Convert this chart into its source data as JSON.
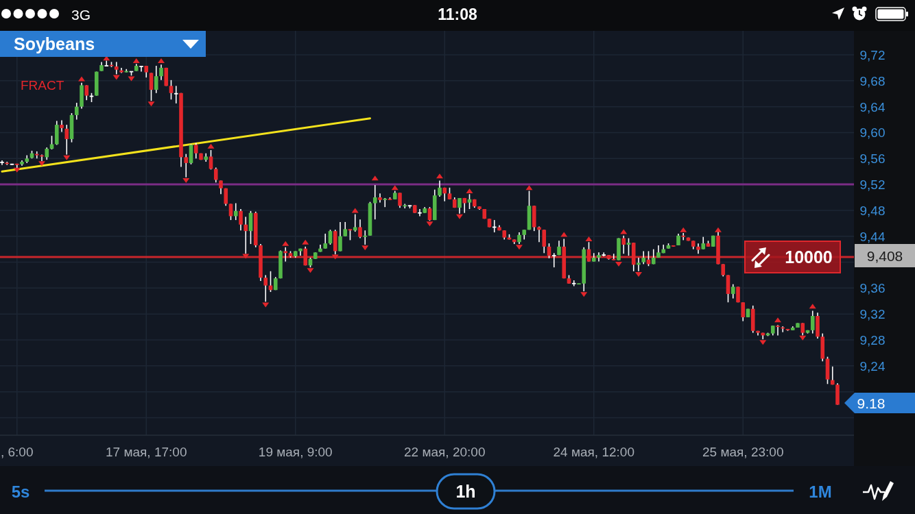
{
  "chart_data": {
    "type": "candlestick",
    "title": "Soybeans",
    "categories": [
      null,
      null,
      null,
      ", 6:00",
      null,
      null,
      null,
      null,
      null,
      null,
      null,
      null,
      null,
      null,
      null,
      null,
      null,
      null,
      null,
      null,
      null,
      null,
      null,
      null,
      null,
      null,
      null,
      null,
      null,
      "17 мая, 17:00",
      null,
      null,
      null,
      null,
      null,
      null,
      null,
      null,
      null,
      null,
      null,
      null,
      null,
      null,
      null,
      null,
      null,
      null,
      null,
      null,
      null,
      null,
      null,
      null,
      null,
      null,
      null,
      null,
      null,
      "19 мая, 9:00",
      null,
      null,
      null,
      null,
      null,
      null,
      null,
      null,
      null,
      null,
      null,
      null,
      null,
      null,
      null,
      null,
      null,
      null,
      null,
      null,
      null,
      null,
      null,
      null,
      null,
      null,
      null,
      null,
      null,
      "22 мая, 20:00",
      null,
      null,
      null,
      null,
      null,
      null,
      null,
      null,
      null,
      null,
      null,
      null,
      null,
      null,
      null,
      null,
      null,
      null,
      null,
      null,
      null,
      null,
      null,
      null,
      null,
      null,
      null,
      null,
      null,
      "24 мая, 12:00",
      null,
      null,
      null,
      null,
      null,
      null,
      null,
      null,
      null,
      null,
      null,
      null,
      null,
      null,
      null,
      null,
      null,
      null,
      null,
      null,
      null,
      null,
      null,
      null,
      null,
      null,
      null,
      null,
      null,
      "25 мая, 23:00",
      null,
      null,
      null,
      null,
      null,
      null,
      null,
      null,
      null,
      null,
      null,
      null,
      null,
      null,
      null,
      null,
      null,
      null,
      null
    ],
    "ohlc": [
      [
        9.554,
        9.557,
        9.55,
        9.554
      ],
      [
        9.553,
        9.555,
        9.55,
        9.552
      ],
      [
        9.551,
        9.552,
        9.55,
        9.551
      ],
      [
        9.552,
        9.552,
        9.545,
        9.55
      ],
      [
        9.551,
        9.557,
        9.549,
        9.555
      ],
      [
        9.555,
        9.565,
        9.553,
        9.56
      ],
      [
        9.561,
        9.572,
        9.56,
        9.568
      ],
      [
        9.567,
        9.571,
        9.56,
        9.565
      ],
      [
        9.565,
        9.566,
        9.556,
        9.563
      ],
      [
        9.562,
        9.577,
        9.558,
        9.575
      ],
      [
        9.575,
        9.595,
        9.574,
        9.582
      ],
      [
        9.582,
        9.618,
        9.581,
        9.612
      ],
      [
        9.612,
        9.619,
        9.601,
        9.607
      ],
      [
        9.606,
        9.612,
        9.566,
        9.59
      ],
      [
        9.59,
        9.63,
        9.585,
        9.627
      ],
      [
        9.627,
        9.646,
        9.62,
        9.64
      ],
      [
        9.64,
        9.677,
        9.637,
        9.673
      ],
      [
        9.673,
        9.673,
        9.65,
        9.657
      ],
      [
        9.656,
        9.661,
        9.647,
        9.656
      ],
      [
        9.657,
        9.694,
        9.657,
        9.694
      ],
      [
        9.695,
        9.709,
        9.695,
        9.704
      ],
      [
        9.703,
        9.711,
        9.702,
        9.703
      ],
      [
        9.704,
        9.709,
        9.701,
        9.703
      ],
      [
        9.702,
        9.709,
        9.69,
        9.697
      ],
      [
        9.696,
        9.7,
        9.692,
        9.693
      ],
      [
        9.693,
        9.698,
        9.693,
        9.695
      ],
      [
        9.694,
        9.694,
        9.688,
        9.694
      ],
      [
        9.695,
        9.706,
        9.695,
        9.703
      ],
      [
        9.702,
        9.702,
        9.694,
        9.702
      ],
      [
        9.703,
        9.703,
        9.685,
        9.693
      ],
      [
        9.692,
        9.692,
        9.649,
        9.666
      ],
      [
        9.666,
        9.703,
        9.661,
        9.687
      ],
      [
        9.687,
        9.705,
        9.681,
        9.7
      ],
      [
        9.7,
        9.7,
        9.672,
        9.672
      ],
      [
        9.672,
        9.681,
        9.651,
        9.661
      ],
      [
        9.66,
        9.672,
        9.645,
        9.66
      ],
      [
        9.661,
        9.661,
        9.547,
        9.562
      ],
      [
        9.562,
        9.567,
        9.531,
        9.553
      ],
      [
        9.553,
        9.582,
        9.551,
        9.581
      ],
      [
        9.581,
        9.584,
        9.56,
        9.568
      ],
      [
        9.568,
        9.568,
        9.558,
        9.558
      ],
      [
        9.558,
        9.568,
        9.555,
        9.563
      ],
      [
        9.563,
        9.573,
        9.543,
        9.544
      ],
      [
        9.544,
        9.546,
        9.523,
        9.527
      ],
      [
        9.526,
        9.526,
        9.505,
        9.514
      ],
      [
        9.514,
        9.514,
        9.487,
        9.49
      ],
      [
        9.49,
        9.49,
        9.465,
        9.471
      ],
      [
        9.471,
        9.491,
        9.465,
        9.479
      ],
      [
        9.479,
        9.482,
        9.449,
        9.458
      ],
      [
        9.458,
        9.47,
        9.413,
        9.448
      ],
      [
        9.448,
        9.479,
        9.428,
        9.476
      ],
      [
        9.476,
        9.478,
        9.423,
        9.426
      ],
      [
        9.426,
        9.428,
        9.371,
        9.376
      ],
      [
        9.376,
        9.38,
        9.339,
        9.364
      ],
      [
        9.364,
        9.386,
        9.354,
        9.357
      ],
      [
        9.357,
        9.377,
        9.357,
        9.375
      ],
      [
        9.375,
        9.418,
        9.375,
        9.417
      ],
      [
        9.417,
        9.423,
        9.401,
        9.414
      ],
      [
        9.414,
        9.417,
        9.407,
        9.409
      ],
      [
        9.409,
        9.417,
        9.407,
        9.417
      ],
      [
        9.417,
        9.421,
        9.41,
        9.421
      ],
      [
        9.421,
        9.424,
        9.395,
        9.395
      ],
      [
        9.395,
        9.407,
        9.392,
        9.405
      ],
      [
        9.405,
        9.415,
        9.405,
        9.415
      ],
      [
        9.416,
        9.427,
        9.416,
        9.421
      ],
      [
        9.421,
        9.444,
        9.421,
        9.429
      ],
      [
        9.429,
        9.45,
        9.427,
        9.448
      ],
      [
        9.448,
        9.45,
        9.412,
        9.417
      ],
      [
        9.417,
        9.462,
        9.417,
        9.44
      ],
      [
        9.44,
        9.462,
        9.44,
        9.451
      ],
      [
        9.451,
        9.451,
        9.434,
        9.449
      ],
      [
        9.449,
        9.474,
        9.447,
        9.454
      ],
      [
        9.454,
        9.466,
        9.437,
        9.439
      ],
      [
        9.439,
        9.449,
        9.427,
        9.441
      ],
      [
        9.441,
        9.493,
        9.441,
        9.491
      ],
      [
        9.491,
        9.519,
        9.466,
        9.5
      ],
      [
        9.5,
        9.506,
        9.492,
        9.496
      ],
      [
        9.496,
        9.499,
        9.485,
        9.498
      ],
      [
        9.498,
        9.5,
        9.496,
        9.496
      ],
      [
        9.497,
        9.51,
        9.497,
        9.507
      ],
      [
        9.507,
        9.507,
        9.484,
        9.487
      ],
      [
        9.486,
        9.49,
        9.483,
        9.488
      ],
      [
        9.487,
        9.488,
        9.483,
        9.487
      ],
      [
        9.488,
        9.488,
        9.476,
        9.476
      ],
      [
        9.476,
        9.482,
        9.471,
        9.476
      ],
      [
        9.476,
        9.485,
        9.476,
        9.483
      ],
      [
        9.483,
        9.485,
        9.464,
        9.465
      ],
      [
        9.465,
        9.512,
        9.465,
        9.503
      ],
      [
        9.503,
        9.526,
        9.501,
        9.515
      ],
      [
        9.515,
        9.515,
        9.494,
        9.506
      ],
      [
        9.506,
        9.515,
        9.497,
        9.497
      ],
      [
        9.497,
        9.5,
        9.484,
        9.484
      ],
      [
        9.484,
        9.499,
        9.475,
        9.499
      ],
      [
        9.499,
        9.499,
        9.476,
        9.491
      ],
      [
        9.492,
        9.505,
        9.482,
        9.497
      ],
      [
        9.497,
        9.497,
        9.484,
        9.486
      ],
      [
        9.486,
        9.486,
        9.481,
        9.482
      ],
      [
        9.482,
        9.482,
        9.467,
        9.467
      ],
      [
        9.467,
        9.467,
        9.454,
        9.454
      ],
      [
        9.454,
        9.465,
        9.446,
        9.454
      ],
      [
        9.454,
        9.457,
        9.449,
        9.449
      ],
      [
        9.449,
        9.449,
        9.435,
        9.438
      ],
      [
        9.438,
        9.443,
        9.435,
        9.435
      ],
      [
        9.435,
        9.435,
        9.428,
        9.431
      ],
      [
        9.431,
        9.446,
        9.428,
        9.442
      ],
      [
        9.442,
        9.45,
        9.435,
        9.45
      ],
      [
        9.45,
        9.51,
        9.45,
        9.487
      ],
      [
        9.487,
        9.487,
        9.448,
        9.454
      ],
      [
        9.454,
        9.455,
        9.431,
        9.45
      ],
      [
        9.45,
        9.45,
        9.414,
        9.424
      ],
      [
        9.424,
        9.429,
        9.406,
        9.41
      ],
      [
        9.41,
        9.414,
        9.392,
        9.41
      ],
      [
        9.411,
        9.433,
        9.411,
        9.424
      ],
      [
        9.424,
        9.436,
        9.375,
        9.375
      ],
      [
        9.375,
        9.38,
        9.367,
        9.367
      ],
      [
        9.367,
        9.372,
        9.363,
        9.367
      ],
      [
        9.366,
        9.367,
        9.366,
        9.367
      ],
      [
        9.367,
        9.423,
        9.355,
        9.42
      ],
      [
        9.42,
        9.431,
        9.401,
        9.401
      ],
      [
        9.401,
        9.414,
        9.401,
        9.407
      ],
      [
        9.407,
        9.415,
        9.401,
        9.411
      ],
      [
        9.411,
        9.415,
        9.409,
        9.411
      ],
      [
        9.411,
        9.411,
        9.404,
        9.405
      ],
      [
        9.405,
        9.413,
        9.403,
        9.403
      ],
      [
        9.403,
        9.437,
        9.403,
        9.437
      ],
      [
        9.437,
        9.441,
        9.413,
        9.427
      ],
      [
        9.427,
        9.437,
        9.41,
        9.43
      ],
      [
        9.43,
        9.43,
        9.386,
        9.396
      ],
      [
        9.396,
        9.407,
        9.386,
        9.399
      ],
      [
        9.4,
        9.417,
        9.397,
        9.407
      ],
      [
        9.404,
        9.417,
        9.394,
        9.397
      ],
      [
        9.397,
        9.42,
        9.397,
        9.407
      ],
      [
        9.407,
        9.426,
        9.407,
        9.415
      ],
      [
        9.414,
        9.427,
        9.414,
        9.42
      ],
      [
        9.421,
        9.429,
        9.421,
        9.426
      ],
      [
        9.426,
        9.426,
        9.424,
        9.424
      ],
      [
        9.426,
        9.444,
        9.426,
        9.441
      ],
      [
        9.441,
        9.445,
        9.434,
        9.439
      ],
      [
        9.438,
        9.438,
        9.433,
        9.433
      ],
      [
        9.433,
        9.433,
        9.42,
        9.424
      ],
      [
        9.424,
        9.429,
        9.413,
        9.419
      ],
      [
        9.42,
        9.439,
        9.42,
        9.429
      ],
      [
        9.429,
        9.433,
        9.424,
        9.424
      ],
      [
        9.424,
        9.441,
        9.424,
        9.441
      ],
      [
        9.441,
        9.447,
        9.397,
        9.397
      ],
      [
        9.397,
        9.397,
        9.378,
        9.38
      ],
      [
        9.38,
        9.38,
        9.338,
        9.351
      ],
      [
        9.351,
        9.366,
        9.344,
        9.362
      ],
      [
        9.362,
        9.362,
        9.338,
        9.338
      ],
      [
        9.338,
        9.338,
        9.309,
        9.315
      ],
      [
        9.315,
        9.328,
        9.315,
        9.328
      ],
      [
        9.328,
        9.333,
        9.291,
        9.294
      ],
      [
        9.294,
        9.294,
        9.287,
        9.291
      ],
      [
        9.291,
        9.291,
        9.281,
        9.287
      ],
      [
        9.287,
        9.291,
        9.286,
        9.29
      ],
      [
        9.29,
        9.302,
        9.287,
        9.302
      ],
      [
        9.302,
        9.303,
        9.287,
        9.3
      ],
      [
        9.299,
        9.301,
        9.292,
        9.298
      ],
      [
        9.297,
        9.297,
        9.294,
        9.295
      ],
      [
        9.295,
        9.301,
        9.295,
        9.299
      ],
      [
        9.299,
        9.306,
        9.299,
        9.306
      ],
      [
        9.306,
        9.306,
        9.287,
        9.291
      ],
      [
        9.291,
        9.295,
        9.29,
        9.295
      ],
      [
        9.295,
        9.325,
        9.29,
        9.317
      ],
      [
        9.317,
        9.322,
        9.282,
        9.285
      ],
      [
        9.285,
        9.29,
        9.247,
        9.251
      ],
      [
        9.251,
        9.254,
        9.212,
        9.219
      ],
      [
        9.218,
        9.239,
        9.211,
        9.211
      ],
      [
        9.211,
        9.213,
        9.18,
        9.18
      ]
    ],
    "colors": [
      "#ffffff",
      "#e3262b",
      "#ffffff",
      "#e3262b",
      "#53b848",
      "#53b848",
      "#53b848",
      "#e3262b",
      "#e3262b",
      "#53b848",
      "#53b848",
      "#53b848",
      "#e3262b",
      "#e3262b",
      "#53b848",
      "#53b848",
      "#53b848",
      "#e3262b",
      "#ffffff",
      "#53b848",
      "#53b848",
      "#ffffff",
      "#e3262b",
      "#e3262b",
      "#e3262b",
      "#53b848",
      "#ffffff",
      "#53b848",
      "#ffffff",
      "#e3262b",
      "#e3262b",
      "#53b848",
      "#53b848",
      "#e3262b",
      "#e3262b",
      "#ffffff",
      "#e3262b",
      "#e3262b",
      "#53b848",
      "#e3262b",
      "#e3262b",
      "#53b848",
      "#e3262b",
      "#e3262b",
      "#e3262b",
      "#e3262b",
      "#e3262b",
      "#53b848",
      "#e3262b",
      "#e3262b",
      "#53b848",
      "#e3262b",
      "#e3262b",
      "#e3262b",
      "#e3262b",
      "#53b848",
      "#53b848",
      "#e3262b",
      "#e3262b",
      "#53b848",
      "#53b848",
      "#e3262b",
      "#53b848",
      "#53b848",
      "#53b848",
      "#53b848",
      "#53b848",
      "#e3262b",
      "#53b848",
      "#53b848",
      "#e3262b",
      "#53b848",
      "#e3262b",
      "#53b848",
      "#53b848",
      "#53b848",
      "#e3262b",
      "#53b848",
      "#e3262b",
      "#53b848",
      "#e3262b",
      "#53b848",
      "#ffffff",
      "#e3262b",
      "#ffffff",
      "#53b848",
      "#e3262b",
      "#53b848",
      "#53b848",
      "#e3262b",
      "#e3262b",
      "#e3262b",
      "#53b848",
      "#e3262b",
      "#53b848",
      "#e3262b",
      "#e3262b",
      "#e3262b",
      "#e3262b",
      "#ffffff",
      "#e3262b",
      "#e3262b",
      "#e3262b",
      "#e3262b",
      "#53b848",
      "#53b848",
      "#53b848",
      "#e3262b",
      "#e3262b",
      "#e3262b",
      "#e3262b",
      "#ffffff",
      "#53b848",
      "#e3262b",
      "#e3262b",
      "#ffffff",
      "#53b848",
      "#53b848",
      "#e3262b",
      "#53b848",
      "#53b848",
      "#ffffff",
      "#e3262b",
      "#e3262b",
      "#53b848",
      "#e3262b",
      "#53b848",
      "#e3262b",
      "#53b848",
      "#53b848",
      "#e3262b",
      "#53b848",
      "#53b848",
      "#53b848",
      "#53b848",
      "#e3262b",
      "#53b848",
      "#e3262b",
      "#e3262b",
      "#e3262b",
      "#e3262b",
      "#53b848",
      "#e3262b",
      "#53b848",
      "#e3262b",
      "#e3262b",
      "#e3262b",
      "#53b848",
      "#e3262b",
      "#e3262b",
      "#53b848",
      "#e3262b",
      "#e3262b",
      "#e3262b",
      "#53b848",
      "#53b848",
      "#e3262b",
      "#e3262b",
      "#e3262b",
      "#53b848",
      "#53b848",
      "#e3262b",
      "#53b848",
      "#53b848",
      "#e3262b",
      "#e3262b",
      "#e3262b",
      "#e3262b",
      "#e3262b"
    ],
    "series": [
      {
        "name": "FRACT",
        "type": "scatter",
        "marker": "triangle",
        "color": "#e3262b",
        "values": [
          null,
          null,
          null,
          9.542,
          null,
          null,
          null,
          null,
          9.552,
          null,
          null,
          null,
          null,
          9.561,
          null,
          null,
          9.683,
          null,
          null,
          null,
          null,
          9.715,
          null,
          9.685,
          null,
          null,
          9.683,
          9.711,
          null,
          null,
          9.644,
          null,
          9.711,
          null,
          null,
          null,
          null,
          9.526,
          null,
          null,
          null,
          null,
          9.579,
          null,
          null,
          null,
          null,
          null,
          null,
          9.409,
          null,
          null,
          null,
          9.334,
          null,
          null,
          null,
          9.429,
          null,
          null,
          null,
          9.431,
          9.387,
          null,
          null,
          null,
          null,
          9.408,
          null,
          null,
          null,
          9.48,
          null,
          9.422,
          null,
          9.53,
          null,
          null,
          null,
          9.515,
          null,
          null,
          null,
          null,
          null,
          null,
          9.459,
          null,
          9.533,
          null,
          null,
          null,
          9.47,
          null,
          9.51,
          null,
          null,
          null,
          null,
          null,
          null,
          null,
          null,
          null,
          9.423,
          null,
          9.515,
          null,
          null,
          null,
          null,
          null,
          null,
          9.443,
          null,
          null,
          null,
          9.35,
          9.436,
          null,
          null,
          null,
          null,
          null,
          9.397,
          9.447,
          null,
          null,
          9.381,
          null,
          null,
          null,
          null,
          null,
          null,
          null,
          null,
          9.45,
          null,
          null,
          null,
          null,
          null,
          null,
          9.45,
          null,
          null,
          null,
          null,
          null,
          null,
          null,
          null,
          9.276,
          null,
          null,
          9.311,
          null,
          null,
          null,
          null,
          9.283,
          null,
          9.332,
          null,
          null,
          null,
          null,
          null
        ]
      },
      {
        "type": "line",
        "color": "#f3e21c",
        "values": [
          9.54,
          null,
          null,
          null,
          null,
          null,
          null,
          null,
          null,
          null,
          null,
          null,
          null,
          null,
          null,
          null,
          null,
          null,
          null,
          null,
          null,
          null,
          null,
          null,
          null,
          null,
          null,
          null,
          null,
          null,
          null,
          null,
          null,
          null,
          null,
          null,
          null,
          null,
          null,
          null,
          null,
          null,
          null,
          null,
          null,
          null,
          null,
          null,
          null,
          null,
          null,
          null,
          null,
          null,
          null,
          null,
          null,
          null,
          null,
          null,
          null,
          null,
          null,
          null,
          null,
          null,
          null,
          null,
          null,
          null,
          null,
          null,
          null,
          null,
          9.622,
          null,
          null,
          null,
          null,
          null,
          null,
          null,
          null,
          null,
          null,
          null,
          null,
          null,
          null,
          null,
          null,
          null,
          null,
          null,
          null,
          null,
          null,
          null,
          null,
          null,
          null,
          null,
          null,
          null,
          null,
          null,
          null,
          null,
          null,
          null,
          null,
          null,
          null,
          null,
          null,
          null,
          null,
          null,
          null,
          null,
          null,
          null,
          null,
          null,
          null,
          null,
          null,
          null,
          null,
          null,
          null,
          null,
          null,
          null,
          null,
          null,
          null,
          null,
          null,
          null,
          null,
          null,
          null,
          null,
          null,
          null,
          null,
          null,
          null,
          null,
          null,
          null,
          null,
          null,
          null,
          null,
          null,
          null,
          null,
          null,
          null,
          null,
          null,
          null,
          null,
          null,
          null,
          null,
          null
        ]
      }
    ],
    "ylim": [
      9.133,
      9.757
    ],
    "yticks": [
      {
        "value": 9.72,
        "label": "9,72"
      },
      {
        "value": 9.68,
        "label": "9,68"
      },
      {
        "value": 9.64,
        "label": "9,64"
      },
      {
        "value": 9.6,
        "label": "9,60"
      },
      {
        "value": 9.56,
        "label": "9,56"
      },
      {
        "value": 9.52,
        "label": "9,52"
      },
      {
        "value": 9.48,
        "label": "9,48"
      },
      {
        "value": 9.44,
        "label": "9,44"
      },
      {
        "value": 9.4,
        "label": null
      },
      {
        "value": 9.36,
        "label": "9,36"
      },
      {
        "value": 9.32,
        "label": "9,32"
      },
      {
        "value": 9.28,
        "label": "9,28"
      },
      {
        "value": 9.24,
        "label": "9,24"
      },
      {
        "value": 9.2,
        "label": null
      },
      {
        "value": 9.16,
        "label": null
      }
    ],
    "grid": true,
    "legend": "top left",
    "ref_lines": [
      {
        "axis": "y",
        "value": 9.52,
        "color": "#7b2c86"
      },
      {
        "axis": "y",
        "value": 9.408,
        "color": "#c8262b"
      }
    ],
    "annotations": [
      "3G",
      "11:08",
      "5s",
      "1h",
      "1M",
      {
        "text": "10000",
        "y": 9.408
      },
      "9,408",
      "9.18"
    ]
  }
}
